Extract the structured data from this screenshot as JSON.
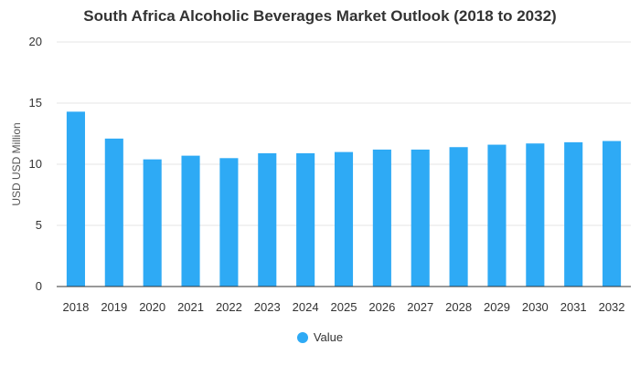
{
  "chart_data": {
    "type": "bar",
    "title": "South Africa Alcoholic Beverages Market Outlook (2018 to 2032)",
    "xlabel": "",
    "ylabel": "USD USD Million",
    "categories": [
      "2018",
      "2019",
      "2020",
      "2021",
      "2022",
      "2023",
      "2024",
      "2025",
      "2026",
      "2027",
      "2028",
      "2029",
      "2030",
      "2031",
      "2032"
    ],
    "series": [
      {
        "name": "Value",
        "values": [
          14.3,
          12.1,
          10.4,
          10.7,
          10.5,
          10.9,
          10.9,
          11.0,
          11.2,
          11.2,
          11.4,
          11.6,
          11.7,
          11.8,
          11.9
        ]
      }
    ],
    "ylim": [
      0,
      20
    ],
    "yticks": [
      0,
      5,
      10,
      15,
      20
    ],
    "grid": true,
    "legend_position": "bottom-center",
    "bar_color": "#2eaaf5"
  }
}
